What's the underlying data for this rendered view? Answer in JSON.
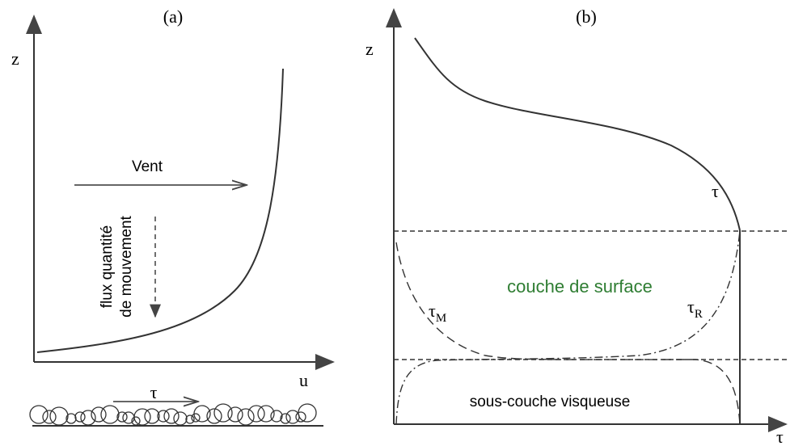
{
  "panel_a": {
    "label": "(a)",
    "y_axis": "z",
    "x_axis": "u",
    "wind_label": "Vent",
    "flux_label": [
      "flux quantité",
      "de mouvement"
    ],
    "stress_label": "τ"
  },
  "panel_b": {
    "label": "(b)",
    "y_axis": "z",
    "x_axis": "τ",
    "total_stress_label": "τ",
    "surface_layer": "couche de surface",
    "viscous_sublayer": "sous-couche visqueuse",
    "tau_m": {
      "symbol": "τ",
      "subscript": "M"
    },
    "tau_r": {
      "symbol": "τ",
      "subscript": "R"
    }
  }
}
